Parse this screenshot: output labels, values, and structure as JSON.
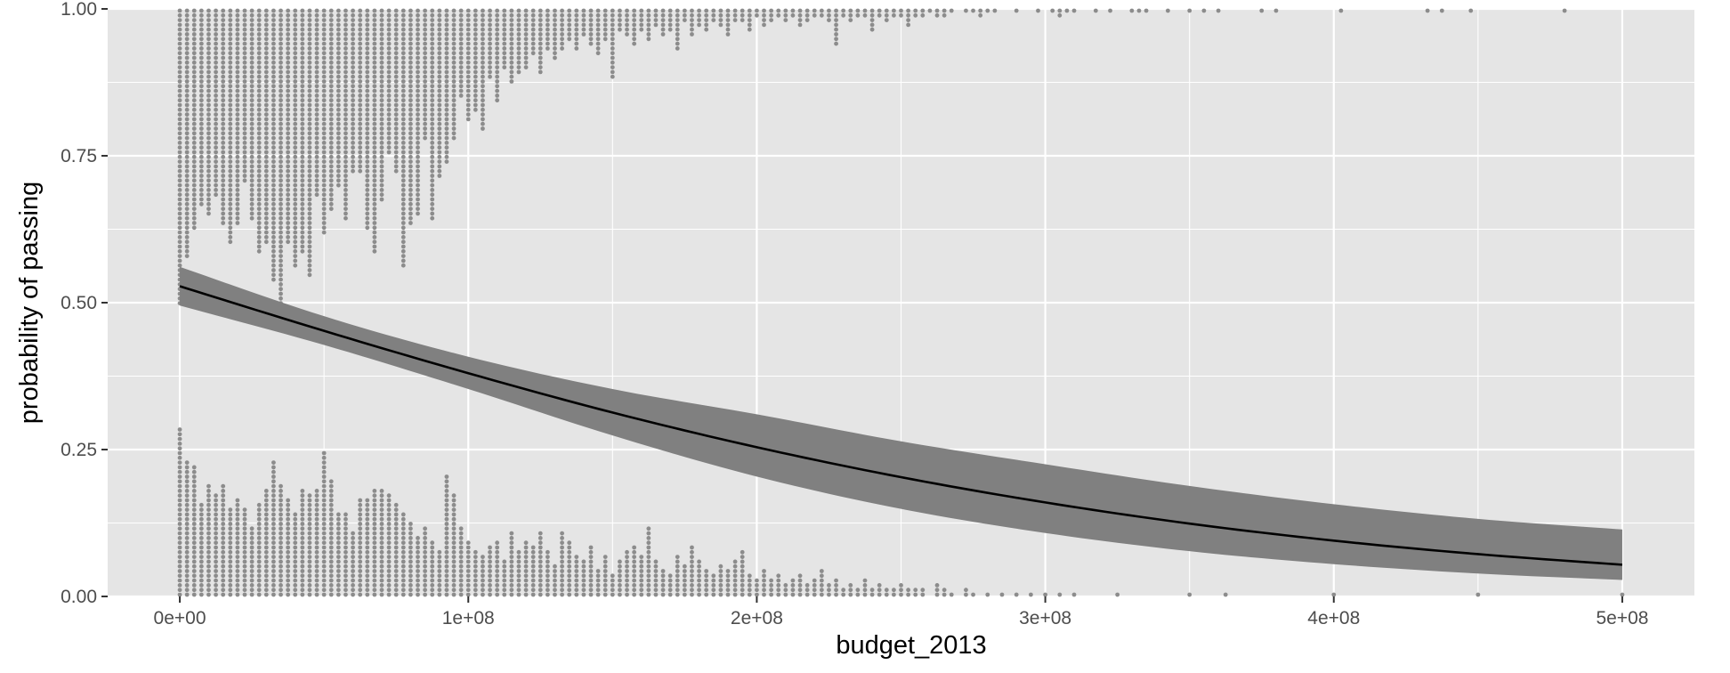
{
  "chart_data": {
    "type": "scatter",
    "title": "",
    "xlabel": "budget_2013",
    "ylabel": "probability of passing",
    "xlim": [
      -25000000,
      525000000
    ],
    "ylim": [
      0,
      1
    ],
    "x_ticks": [
      0,
      100000000,
      200000000,
      300000000,
      400000000,
      500000000
    ],
    "x_tick_labels": [
      "0e+00",
      "1e+08",
      "2e+08",
      "3e+08",
      "4e+08",
      "5e+08"
    ],
    "y_ticks": [
      0,
      0.25,
      0.5,
      0.75,
      1
    ],
    "y_tick_labels": [
      "0.00",
      "0.25",
      "0.50",
      "0.75",
      "1.00"
    ],
    "grid": true,
    "legend": "none",
    "colors": {
      "panel": "#e5e5e5",
      "grid": "#ffffff",
      "points": "#8c8c8c",
      "ribbon": "#808080",
      "line": "#000000",
      "tick_text": "#4d4d4d"
    },
    "fitted_curve": {
      "x": [
        0,
        50000000,
        100000000,
        150000000,
        200000000,
        250000000,
        300000000,
        350000000,
        400000000,
        450000000,
        500000000
      ],
      "y": [
        0.528,
        0.452,
        0.38,
        0.313,
        0.254,
        0.203,
        0.16,
        0.124,
        0.095,
        0.072,
        0.054
      ],
      "lower": [
        0.495,
        0.428,
        0.353,
        0.274,
        0.204,
        0.149,
        0.108,
        0.077,
        0.055,
        0.039,
        0.028
      ],
      "upper": [
        0.561,
        0.477,
        0.408,
        0.353,
        0.31,
        0.264,
        0.225,
        0.188,
        0.157,
        0.132,
        0.114
      ]
    },
    "passed_dots": {
      "y": 1,
      "columns": [
        [
          0,
          63
        ],
        [
          1,
          53
        ],
        [
          2,
          47
        ],
        [
          3,
          42
        ],
        [
          4,
          44
        ],
        [
          5,
          40
        ],
        [
          6,
          46
        ],
        [
          7,
          50
        ],
        [
          8,
          46
        ],
        [
          9,
          37
        ],
        [
          10,
          45
        ],
        [
          11,
          52
        ],
        [
          12,
          50
        ],
        [
          13,
          58
        ],
        [
          14,
          63
        ],
        [
          15,
          50
        ],
        [
          16,
          55
        ],
        [
          17,
          52
        ],
        [
          18,
          57
        ],
        [
          19,
          40
        ],
        [
          20,
          48
        ],
        [
          21,
          43
        ],
        [
          22,
          38
        ],
        [
          23,
          45
        ],
        [
          24,
          35
        ],
        [
          25,
          35
        ],
        [
          26,
          47
        ],
        [
          27,
          52
        ],
        [
          28,
          41
        ],
        [
          29,
          31
        ],
        [
          30,
          35
        ],
        [
          31,
          55
        ],
        [
          32,
          46
        ],
        [
          33,
          44
        ],
        [
          34,
          28
        ],
        [
          35,
          45
        ],
        [
          36,
          36
        ],
        [
          37,
          33
        ],
        [
          38,
          28
        ],
        [
          39,
          19
        ],
        [
          40,
          24
        ],
        [
          41,
          22
        ],
        [
          42,
          26
        ],
        [
          43,
          15
        ],
        [
          44,
          20
        ],
        [
          45,
          13
        ],
        [
          46,
          16
        ],
        [
          47,
          14
        ],
        [
          48,
          13
        ],
        [
          49,
          10
        ],
        [
          50,
          14
        ],
        [
          51,
          9
        ],
        [
          52,
          11
        ],
        [
          53,
          9
        ],
        [
          54,
          7
        ],
        [
          55,
          9
        ],
        [
          56,
          6
        ],
        [
          57,
          8
        ],
        [
          58,
          10
        ],
        [
          59,
          7
        ],
        [
          60,
          15
        ],
        [
          61,
          5
        ],
        [
          62,
          6
        ],
        [
          63,
          8
        ],
        [
          64,
          5
        ],
        [
          65,
          7
        ],
        [
          66,
          4
        ],
        [
          67,
          6
        ],
        [
          68,
          5
        ],
        [
          69,
          9
        ],
        [
          70,
          3
        ],
        [
          71,
          6
        ],
        [
          72,
          4
        ],
        [
          73,
          5
        ],
        [
          74,
          3
        ],
        [
          75,
          4
        ],
        [
          76,
          6
        ],
        [
          77,
          3
        ],
        [
          78,
          3
        ],
        [
          79,
          5
        ],
        [
          80,
          2
        ],
        [
          81,
          4
        ],
        [
          82,
          3
        ],
        [
          83,
          2
        ],
        [
          84,
          3
        ],
        [
          85,
          2
        ],
        [
          86,
          4
        ],
        [
          87,
          3
        ],
        [
          88,
          2
        ],
        [
          89,
          2
        ],
        [
          90,
          3
        ],
        [
          91,
          8
        ],
        [
          92,
          2
        ],
        [
          93,
          3
        ],
        [
          94,
          2
        ],
        [
          95,
          2
        ],
        [
          96,
          5
        ],
        [
          97,
          2
        ],
        [
          98,
          3
        ],
        [
          99,
          2
        ],
        [
          100,
          2
        ],
        [
          101,
          4
        ],
        [
          102,
          2
        ],
        [
          103,
          2
        ],
        [
          104,
          1
        ],
        [
          105,
          2
        ],
        [
          106,
          2
        ],
        [
          107,
          1
        ],
        [
          109,
          1
        ],
        [
          110,
          1
        ],
        [
          111,
          2
        ],
        [
          112,
          1
        ],
        [
          113,
          1
        ],
        [
          116,
          1
        ],
        [
          119,
          1
        ],
        [
          121,
          1
        ],
        [
          122,
          2
        ],
        [
          123,
          1
        ],
        [
          124,
          1
        ],
        [
          127,
          1
        ],
        [
          129,
          1
        ],
        [
          132,
          1
        ],
        [
          133,
          1
        ],
        [
          134,
          1
        ],
        [
          137,
          1
        ],
        [
          140,
          1
        ],
        [
          142,
          1
        ],
        [
          144,
          1
        ],
        [
          150,
          1
        ],
        [
          152,
          1
        ],
        [
          161,
          1
        ],
        [
          173,
          1
        ],
        [
          175,
          1
        ],
        [
          179,
          1
        ],
        [
          192,
          1
        ]
      ]
    },
    "failed_dots": {
      "y": 0,
      "columns": [
        [
          0,
          36
        ],
        [
          1,
          29
        ],
        [
          2,
          28
        ],
        [
          3,
          20
        ],
        [
          4,
          24
        ],
        [
          5,
          22
        ],
        [
          6,
          24
        ],
        [
          7,
          19
        ],
        [
          8,
          21
        ],
        [
          9,
          19
        ],
        [
          10,
          15
        ],
        [
          11,
          20
        ],
        [
          12,
          23
        ],
        [
          13,
          29
        ],
        [
          14,
          24
        ],
        [
          15,
          21
        ],
        [
          16,
          18
        ],
        [
          17,
          23
        ],
        [
          18,
          22
        ],
        [
          19,
          23
        ],
        [
          20,
          31
        ],
        [
          21,
          25
        ],
        [
          22,
          18
        ],
        [
          23,
          18
        ],
        [
          24,
          14
        ],
        [
          25,
          21
        ],
        [
          26,
          21
        ],
        [
          27,
          23
        ],
        [
          28,
          23
        ],
        [
          29,
          22
        ],
        [
          30,
          20
        ],
        [
          31,
          18
        ],
        [
          32,
          16
        ],
        [
          33,
          13
        ],
        [
          34,
          15
        ],
        [
          35,
          12
        ],
        [
          36,
          10
        ],
        [
          37,
          26
        ],
        [
          38,
          22
        ],
        [
          39,
          15
        ],
        [
          40,
          12
        ],
        [
          41,
          10
        ],
        [
          42,
          9
        ],
        [
          43,
          11
        ],
        [
          44,
          12
        ],
        [
          45,
          8
        ],
        [
          46,
          14
        ],
        [
          47,
          10
        ],
        [
          48,
          12
        ],
        [
          49,
          11
        ],
        [
          50,
          14
        ],
        [
          51,
          10
        ],
        [
          52,
          7
        ],
        [
          53,
          14
        ],
        [
          54,
          12
        ],
        [
          55,
          9
        ],
        [
          56,
          8
        ],
        [
          57,
          11
        ],
        [
          58,
          6
        ],
        [
          59,
          9
        ],
        [
          60,
          5
        ],
        [
          61,
          8
        ],
        [
          62,
          10
        ],
        [
          63,
          11
        ],
        [
          64,
          9
        ],
        [
          65,
          15
        ],
        [
          66,
          8
        ],
        [
          67,
          6
        ],
        [
          68,
          5
        ],
        [
          69,
          9
        ],
        [
          70,
          7
        ],
        [
          71,
          11
        ],
        [
          72,
          8
        ],
        [
          73,
          6
        ],
        [
          74,
          5
        ],
        [
          75,
          7
        ],
        [
          76,
          6
        ],
        [
          77,
          8
        ],
        [
          78,
          10
        ],
        [
          79,
          5
        ],
        [
          80,
          4
        ],
        [
          81,
          6
        ],
        [
          82,
          4
        ],
        [
          83,
          5
        ],
        [
          84,
          3
        ],
        [
          85,
          4
        ],
        [
          86,
          5
        ],
        [
          87,
          3
        ],
        [
          88,
          4
        ],
        [
          89,
          6
        ],
        [
          90,
          3
        ],
        [
          91,
          4
        ],
        [
          92,
          2
        ],
        [
          93,
          3
        ],
        [
          94,
          2
        ],
        [
          95,
          4
        ],
        [
          96,
          2
        ],
        [
          97,
          3
        ],
        [
          98,
          2
        ],
        [
          99,
          2
        ],
        [
          100,
          3
        ],
        [
          101,
          2
        ],
        [
          102,
          2
        ],
        [
          103,
          2
        ],
        [
          105,
          3
        ],
        [
          106,
          2
        ],
        [
          107,
          1
        ],
        [
          109,
          2
        ],
        [
          110,
          1
        ],
        [
          112,
          1
        ],
        [
          114,
          1
        ],
        [
          116,
          1
        ],
        [
          118,
          1
        ],
        [
          120,
          1
        ],
        [
          122,
          1
        ],
        [
          124,
          1
        ],
        [
          130,
          1
        ],
        [
          140,
          1
        ],
        [
          145,
          1
        ],
        [
          160,
          1
        ],
        [
          180,
          1
        ],
        [
          200,
          1
        ],
        [
          230,
          1
        ]
      ],
      "extra_x": [
        246,
        248,
        250,
        254,
        260,
        268,
        274,
        278,
        305,
        462
      ]
    }
  }
}
